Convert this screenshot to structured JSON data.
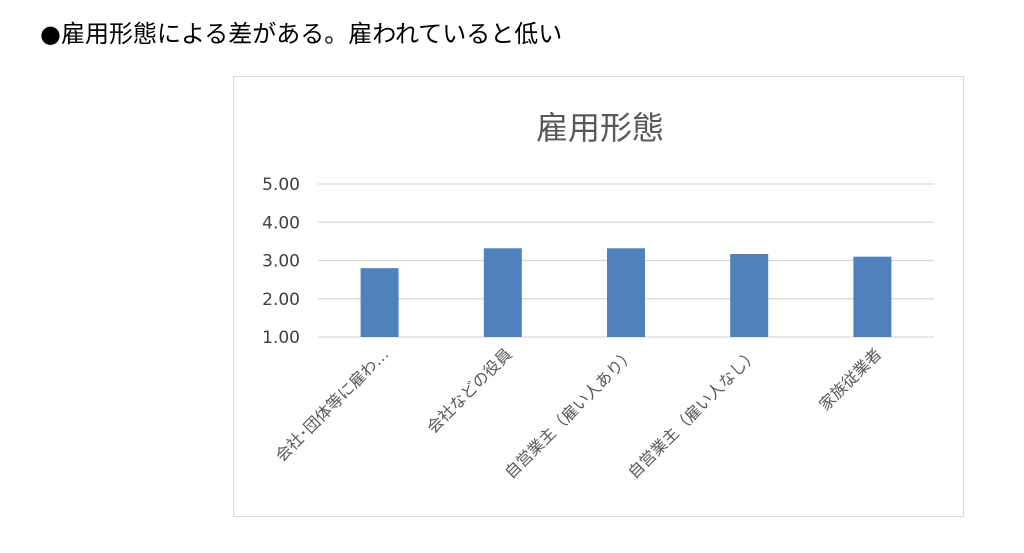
{
  "heading": {
    "bullet": "●",
    "text": "雇用形態による差がある。雇われていると低い"
  },
  "chart_data": {
    "type": "bar",
    "title": "雇用形態",
    "categories": [
      "会社･団体等に雇わ…",
      "会社などの役員",
      "自営業主（雇い人あり）",
      "自営業主（雇い人なし）",
      "家族従業者"
    ],
    "values": [
      2.8,
      3.32,
      3.32,
      3.17,
      3.1
    ],
    "yticks": [
      "5.00",
      "4.00",
      "3.00",
      "2.00",
      "1.00"
    ],
    "ylim": [
      1,
      5
    ],
    "grid": true,
    "bar_color": "#4f81bd",
    "grid_color": "#d9d9d9"
  }
}
